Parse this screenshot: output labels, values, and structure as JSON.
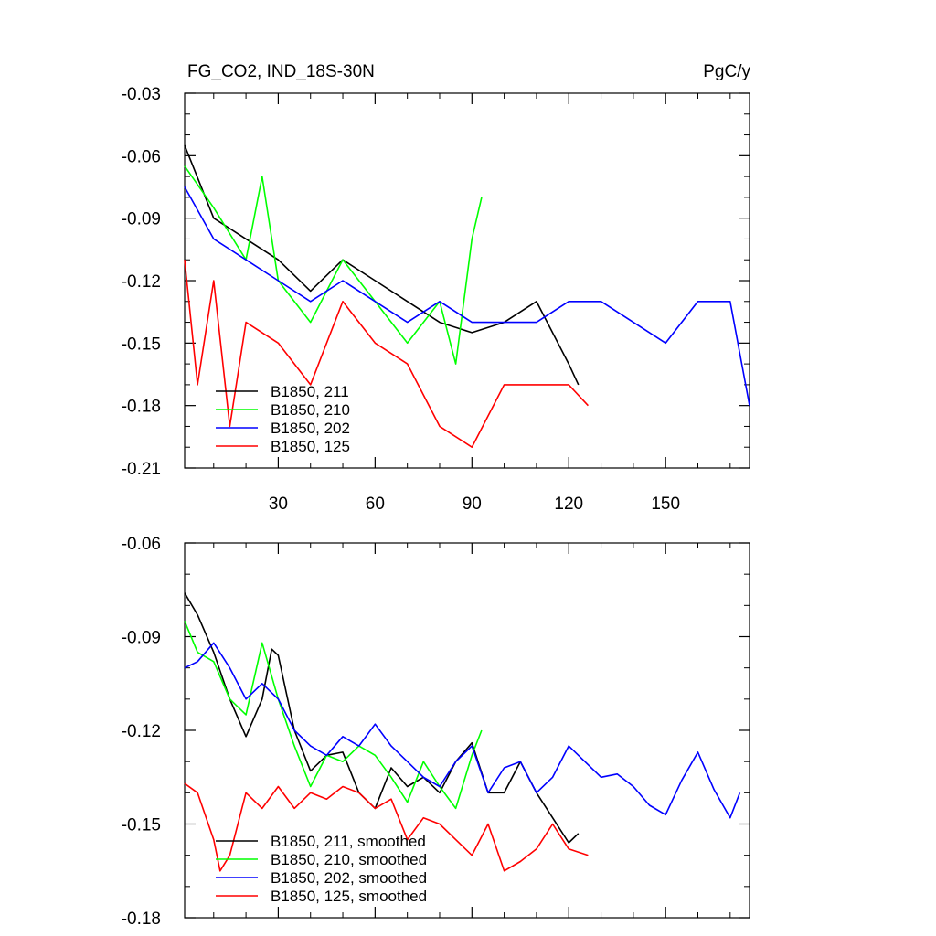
{
  "chart_data": [
    {
      "type": "line",
      "title": "FG_CO2, IND_18S-30N",
      "units_label": "PgC/y",
      "xlabel": "",
      "ylabel": "",
      "xlim": [
        1,
        176
      ],
      "ylim": [
        -0.21,
        -0.03
      ],
      "yticks": [
        -0.03,
        -0.06,
        -0.09,
        -0.12,
        -0.15,
        -0.18,
        -0.21
      ],
      "ytick_labels": [
        "-0.03",
        "-0.06",
        "-0.09",
        "-0.12",
        "-0.15",
        "-0.18",
        "-0.21"
      ],
      "xticks": [
        30,
        60,
        90,
        120,
        150
      ],
      "xtick_labels": [
        "30",
        "60",
        "90",
        "120",
        "150"
      ],
      "legend_position": "bottom-left",
      "series": [
        {
          "name": "B1850, 211",
          "color": "#000000",
          "x": [
            1,
            10,
            20,
            30,
            40,
            50,
            60,
            70,
            80,
            90,
            100,
            110,
            120,
            123
          ],
          "y": [
            -0.055,
            -0.09,
            -0.1,
            -0.11,
            -0.125,
            -0.11,
            -0.12,
            -0.13,
            -0.14,
            -0.145,
            -0.14,
            -0.13,
            -0.16,
            -0.17
          ]
        },
        {
          "name": "B1850, 210",
          "color": "#00ff00",
          "x": [
            1,
            10,
            20,
            25,
            30,
            40,
            50,
            60,
            70,
            80,
            85,
            90,
            93
          ],
          "y": [
            -0.065,
            -0.085,
            -0.11,
            -0.07,
            -0.12,
            -0.14,
            -0.11,
            -0.13,
            -0.15,
            -0.13,
            -0.16,
            -0.1,
            -0.08
          ]
        },
        {
          "name": "B1850, 202",
          "color": "#0000ff",
          "x": [
            1,
            10,
            20,
            30,
            40,
            50,
            60,
            70,
            80,
            90,
            100,
            110,
            120,
            130,
            140,
            150,
            160,
            170,
            176
          ],
          "y": [
            -0.075,
            -0.1,
            -0.11,
            -0.12,
            -0.13,
            -0.12,
            -0.13,
            -0.14,
            -0.13,
            -0.14,
            -0.14,
            -0.14,
            -0.13,
            -0.13,
            -0.14,
            -0.15,
            -0.13,
            -0.13,
            -0.18
          ]
        },
        {
          "name": "B1850, 125",
          "color": "#ff0000",
          "x": [
            1,
            5,
            10,
            15,
            20,
            30,
            40,
            50,
            60,
            70,
            80,
            90,
            100,
            110,
            120,
            126
          ],
          "y": [
            -0.11,
            -0.17,
            -0.12,
            -0.19,
            -0.14,
            -0.15,
            -0.17,
            -0.13,
            -0.15,
            -0.16,
            -0.19,
            -0.2,
            -0.17,
            -0.17,
            -0.17,
            -0.18
          ]
        }
      ]
    },
    {
      "type": "line",
      "title": "",
      "xlabel": "",
      "ylabel": "",
      "xlim": [
        1,
        176
      ],
      "ylim": [
        -0.18,
        -0.06
      ],
      "yticks": [
        -0.06,
        -0.09,
        -0.12,
        -0.15,
        -0.18
      ],
      "ytick_labels": [
        "-0.06",
        "-0.09",
        "-0.12",
        "-0.15",
        "-0.18"
      ],
      "xticks": [
        30,
        60,
        90,
        120,
        150
      ],
      "legend_position": "bottom-left",
      "series": [
        {
          "name": "B1850, 211, smoothed",
          "color": "#000000",
          "x": [
            1,
            5,
            10,
            15,
            20,
            25,
            28,
            30,
            35,
            40,
            45,
            50,
            55,
            60,
            65,
            70,
            75,
            80,
            85,
            90,
            95,
            100,
            105,
            110,
            115,
            120,
            123
          ],
          "y": [
            -0.076,
            -0.083,
            -0.095,
            -0.11,
            -0.122,
            -0.11,
            -0.094,
            -0.096,
            -0.12,
            -0.133,
            -0.128,
            -0.127,
            -0.14,
            -0.145,
            -0.132,
            -0.138,
            -0.135,
            -0.14,
            -0.13,
            -0.124,
            -0.14,
            -0.14,
            -0.13,
            -0.14,
            -0.148,
            -0.156,
            -0.153
          ]
        },
        {
          "name": "B1850, 210, smoothed",
          "color": "#00ff00",
          "x": [
            1,
            5,
            10,
            15,
            20,
            25,
            30,
            35,
            40,
            45,
            50,
            55,
            60,
            65,
            70,
            75,
            80,
            85,
            90,
            93
          ],
          "y": [
            -0.085,
            -0.095,
            -0.098,
            -0.11,
            -0.115,
            -0.092,
            -0.11,
            -0.125,
            -0.138,
            -0.128,
            -0.13,
            -0.125,
            -0.128,
            -0.135,
            -0.143,
            -0.13,
            -0.138,
            -0.145,
            -0.128,
            -0.12
          ]
        },
        {
          "name": "B1850, 202, smoothed",
          "color": "#0000ff",
          "x": [
            1,
            5,
            10,
            15,
            20,
            25,
            30,
            35,
            40,
            45,
            50,
            55,
            60,
            65,
            70,
            75,
            80,
            85,
            90,
            95,
            100,
            105,
            110,
            115,
            120,
            125,
            130,
            135,
            140,
            145,
            150,
            155,
            160,
            165,
            170,
            173
          ],
          "y": [
            -0.1,
            -0.098,
            -0.092,
            -0.1,
            -0.11,
            -0.105,
            -0.11,
            -0.12,
            -0.125,
            -0.128,
            -0.122,
            -0.125,
            -0.118,
            -0.125,
            -0.13,
            -0.135,
            -0.138,
            -0.13,
            -0.125,
            -0.14,
            -0.132,
            -0.13,
            -0.14,
            -0.135,
            -0.125,
            -0.13,
            -0.135,
            -0.134,
            -0.138,
            -0.144,
            -0.147,
            -0.136,
            -0.127,
            -0.139,
            -0.148,
            -0.14
          ]
        },
        {
          "name": "B1850, 125, smoothed",
          "color": "#ff0000",
          "x": [
            1,
            5,
            10,
            12,
            15,
            20,
            25,
            30,
            35,
            40,
            45,
            50,
            55,
            60,
            65,
            70,
            75,
            80,
            85,
            90,
            95,
            100,
            105,
            110,
            115,
            120,
            126
          ],
          "y": [
            -0.137,
            -0.14,
            -0.155,
            -0.165,
            -0.16,
            -0.14,
            -0.145,
            -0.138,
            -0.145,
            -0.14,
            -0.142,
            -0.138,
            -0.14,
            -0.145,
            -0.142,
            -0.155,
            -0.148,
            -0.15,
            -0.155,
            -0.16,
            -0.15,
            -0.165,
            -0.162,
            -0.158,
            -0.15,
            -0.158,
            -0.16
          ]
        }
      ]
    }
  ]
}
